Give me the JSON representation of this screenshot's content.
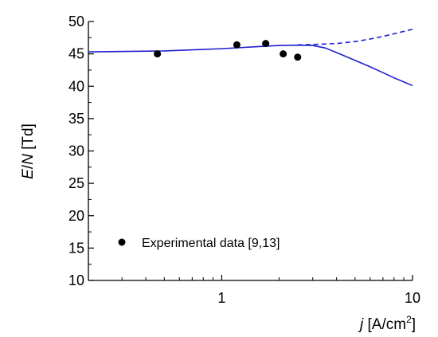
{
  "chart_data": {
    "type": "scatter",
    "xscale": "log",
    "xlim": [
      0.2,
      10
    ],
    "ylim": [
      10,
      50
    ],
    "xlabel": {
      "italic": "j",
      "rest": " [A/cm",
      "sup": "2",
      "close": "]"
    },
    "ylabel": {
      "italic1": "E",
      "slash": "/",
      "italic2": "N",
      "rest": " [Td]"
    },
    "x_ticks_major": [
      1,
      10
    ],
    "x_tick_labels": [
      "1",
      "10"
    ],
    "y_ticks_major": [
      10,
      15,
      20,
      25,
      30,
      35,
      40,
      45,
      50
    ],
    "y_tick_labels": [
      "10",
      "15",
      "20",
      "25",
      "30",
      "35",
      "40",
      "45",
      "50"
    ],
    "legend": {
      "label": "Experimental data [9,13]",
      "position": "bottom-left"
    },
    "series": [
      {
        "style": "solid",
        "color": "#1f1fd0",
        "points": [
          [
            0.2,
            45.3
          ],
          [
            0.5,
            45.45
          ],
          [
            1.0,
            45.8
          ],
          [
            1.5,
            46.1
          ],
          [
            2.0,
            46.3
          ],
          [
            2.5,
            46.35
          ],
          [
            3.0,
            46.3
          ],
          [
            3.5,
            45.9
          ],
          [
            4.0,
            45.2
          ],
          [
            5.0,
            44.0
          ],
          [
            6.0,
            43.0
          ],
          [
            7.0,
            42.1
          ],
          [
            8.0,
            41.3
          ],
          [
            10.0,
            40.1
          ]
        ]
      },
      {
        "style": "dashed",
        "color": "#1f1fd0",
        "points": [
          [
            2.5,
            46.4
          ],
          [
            3.0,
            46.45
          ],
          [
            4.0,
            46.6
          ],
          [
            5.0,
            46.9
          ],
          [
            6.0,
            47.3
          ],
          [
            7.0,
            47.7
          ],
          [
            8.0,
            48.1
          ],
          [
            10.0,
            48.8
          ]
        ]
      },
      {
        "name": "Experimental data [9,13]",
        "style": "markers",
        "color": "#000000",
        "points": [
          [
            0.46,
            45.0
          ],
          [
            1.2,
            46.4
          ],
          [
            1.7,
            46.6
          ],
          [
            2.1,
            45.0
          ],
          [
            2.5,
            44.5
          ]
        ]
      }
    ]
  }
}
